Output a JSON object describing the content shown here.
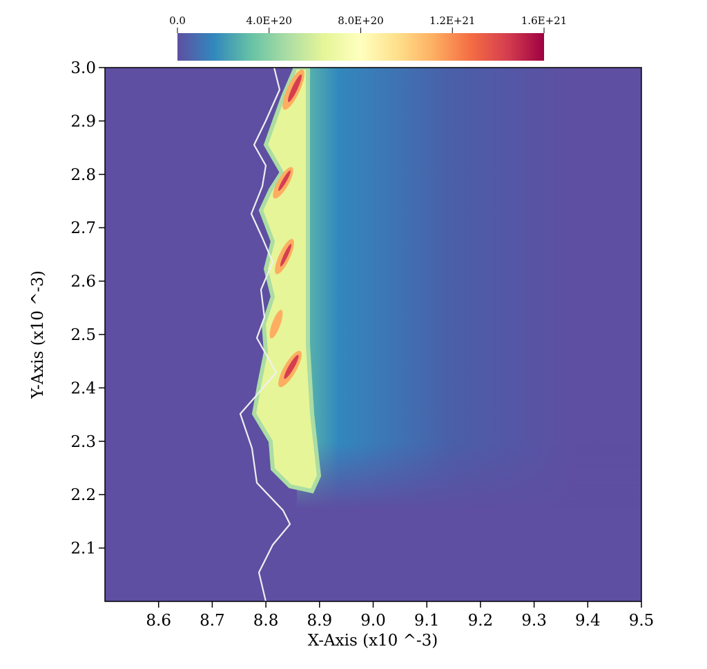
{
  "chart_data": {
    "type": "heatmap",
    "xlabel": "X-Axis (x10 ^-3)",
    "ylabel": "Y-Axis (x10 ^-3)",
    "xlim": [
      8.5,
      9.5
    ],
    "xticks": [
      8.6,
      8.7,
      8.8,
      8.9,
      {
        "value": 9,
        "label": "9.0"
      },
      9.1,
      9.2,
      9.3,
      9.4,
      9.5
    ],
    "ylim": [
      2,
      3
    ],
    "yticks": [
      2.1,
      2.2,
      2.3,
      2.4,
      2.5,
      2.6,
      2.7,
      2.8,
      2.9,
      {
        "value": 3,
        "label": "3.0"
      }
    ],
    "colorbar": {
      "lim": [
        0,
        1.6e+21
      ],
      "ticks": [
        {
          "value": 0,
          "label": "0.0"
        },
        {
          "value": 4e+20,
          "label": "4.0E+20"
        },
        {
          "value": 8e+20,
          "label": "8.0E+20"
        },
        {
          "value": 1.2e+21,
          "label": "1.2E+21"
        },
        {
          "value": 1.6e+21,
          "label": "1.6E+21"
        }
      ],
      "colormap": [
        "#5e4fa2",
        "#3288bd",
        "#66c2a5",
        "#abdda4",
        "#e6f598",
        "#ffffbf",
        "#fee08b",
        "#fdae61",
        "#f46d43",
        "#d53e4f",
        "#9e0142"
      ]
    }
  }
}
